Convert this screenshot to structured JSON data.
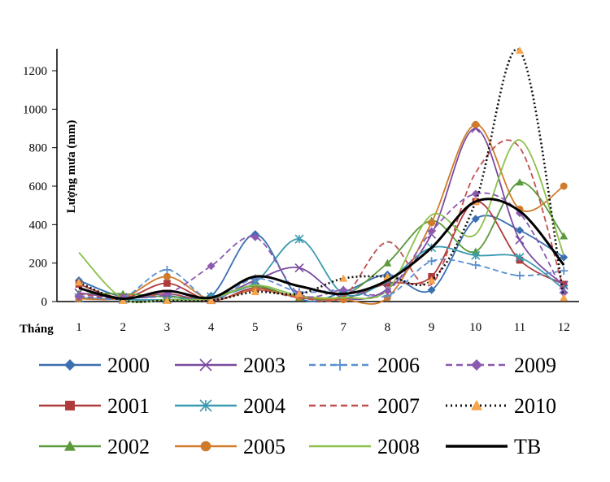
{
  "chart_data": {
    "type": "line",
    "title": "",
    "xlabel": "Tháng",
    "ylabel": "Lượng mưa (mm)",
    "ylim": [
      0,
      1300
    ],
    "yticks": [
      0,
      200,
      400,
      600,
      800,
      1000,
      1200
    ],
    "categories": [
      "1",
      "2",
      "3",
      "4",
      "5",
      "6",
      "7",
      "8",
      "9",
      "10",
      "11",
      "12"
    ],
    "legend_position": "bottom",
    "series": [
      {
        "name": "2000",
        "color": "#3a6fb0",
        "dash": "solid",
        "marker": "diamond",
        "values": [
          110,
          25,
          30,
          30,
          350,
          20,
          50,
          140,
          60,
          430,
          370,
          230
        ]
      },
      {
        "name": "2001",
        "color": "#b03a3a",
        "dash": "solid",
        "marker": "square",
        "values": [
          90,
          20,
          95,
          5,
          70,
          20,
          15,
          95,
          130,
          520,
          215,
          90
        ]
      },
      {
        "name": "2002",
        "color": "#5a9a3c",
        "dash": "solid",
        "marker": "triangle",
        "values": [
          40,
          40,
          25,
          25,
          80,
          20,
          30,
          200,
          420,
          260,
          620,
          340
        ]
      },
      {
        "name": "2003",
        "color": "#7a4aa0",
        "dash": "solid",
        "marker": "x",
        "values": [
          45,
          20,
          40,
          10,
          110,
          175,
          20,
          65,
          350,
          900,
          320,
          85
        ]
      },
      {
        "name": "2004",
        "color": "#3a9ab0",
        "dash": "solid",
        "marker": "star",
        "values": [
          20,
          10,
          10,
          25,
          100,
          325,
          40,
          110,
          280,
          240,
          230,
          65
        ]
      },
      {
        "name": "2005",
        "color": "#d07a2a",
        "dash": "solid",
        "marker": "circle",
        "values": [
          15,
          20,
          130,
          10,
          60,
          25,
          10,
          20,
          410,
          920,
          480,
          600
        ]
      },
      {
        "name": "2006",
        "color": "#5b8fd0",
        "dash": "dashed",
        "marker": "plus",
        "values": [
          30,
          20,
          165,
          10,
          120,
          50,
          60,
          30,
          210,
          190,
          135,
          160
        ]
      },
      {
        "name": "2007",
        "color": "#c05050",
        "dash": "dashed",
        "marker": "none",
        "values": [
          40,
          15,
          40,
          5,
          60,
          20,
          25,
          310,
          90,
          670,
          800,
          60
        ]
      },
      {
        "name": "2008",
        "color": "#8cc04a",
        "dash": "solid",
        "marker": "none",
        "values": [
          255,
          15,
          10,
          15,
          85,
          30,
          20,
          60,
          450,
          350,
          840,
          240
        ]
      },
      {
        "name": "2009",
        "color": "#8a5ab0",
        "dash": "dashed",
        "marker": "diamond",
        "values": [
          25,
          20,
          40,
          185,
          335,
          40,
          60,
          55,
          365,
          560,
          460,
          45
        ]
      },
      {
        "name": "2010",
        "color": "#111111",
        "dash": "dotted",
        "marker": "triangle-orange",
        "values": [
          100,
          5,
          5,
          5,
          50,
          40,
          120,
          130,
          110,
          520,
          1305,
          20
        ]
      },
      {
        "name": "TB",
        "color": "#000000",
        "dash": "solid-thick",
        "marker": "none",
        "values": [
          70,
          15,
          55,
          20,
          130,
          80,
          40,
          110,
          280,
          520,
          470,
          190
        ]
      }
    ]
  }
}
